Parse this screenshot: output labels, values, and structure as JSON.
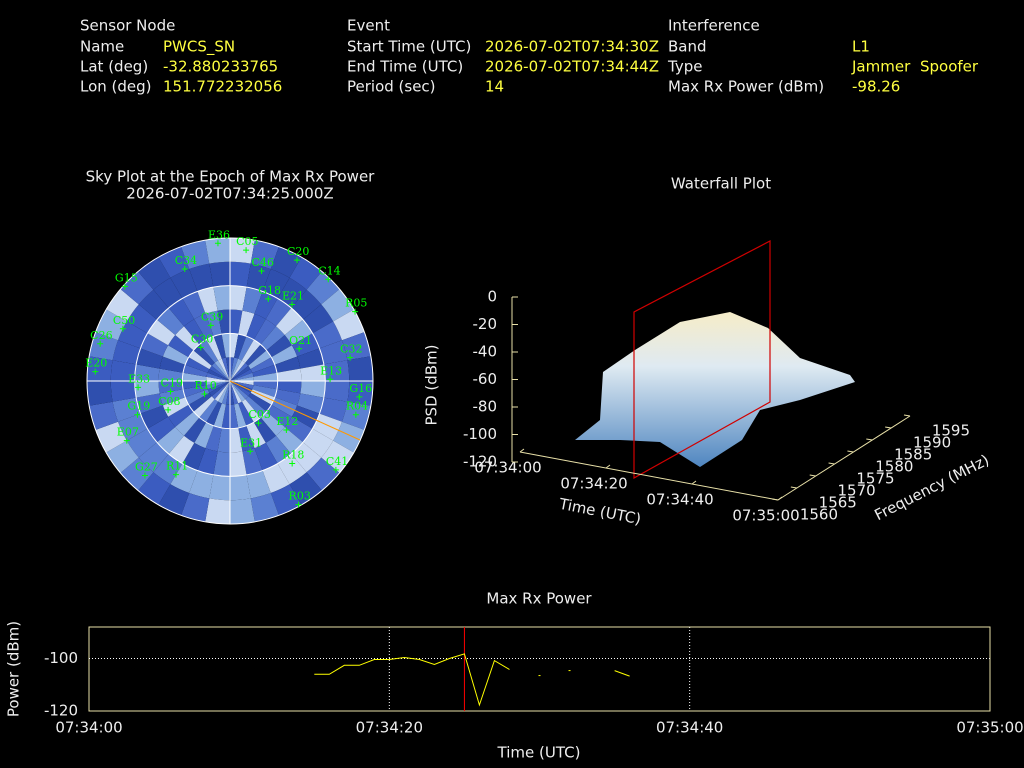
{
  "header": {
    "sensor_node": {
      "title": "Sensor Node",
      "fields": [
        {
          "label": "Name",
          "value": "PWCS_SN"
        },
        {
          "label": "Lat (deg)",
          "value": -32.880233765
        },
        {
          "label": "Lon (deg)",
          "value": 151.772232056
        }
      ]
    },
    "event": {
      "title": "Event",
      "fields": [
        {
          "label": "Start Time (UTC)",
          "value": "2026-07-02T07:34:30Z"
        },
        {
          "label": "End Time (UTC)",
          "value": "2026-07-02T07:34:44Z"
        },
        {
          "label": "Period (sec)",
          "value": 14
        }
      ]
    },
    "interference": {
      "title": "Interference",
      "band_label": "Band",
      "band": "L1",
      "type_label": "Type",
      "type": [
        "Jammer",
        "Spoofer"
      ],
      "power_label": "Max Rx Power (dBm)",
      "power": -98.26
    }
  },
  "chart_data": [
    {
      "type": "polar-scatter",
      "title": "Sky Plot at the Epoch of Max Rx Power",
      "subtitle": "2026-07-02T07:34:25.000Z",
      "color": "#00ff00",
      "rlim": [
        90,
        0
      ],
      "rticks": [
        0,
        30,
        60
      ],
      "satellites": [
        {
          "name": "E36",
          "azimuth": 355,
          "elevation": 3
        },
        {
          "name": "C05",
          "azimuth": 7,
          "elevation": 7
        },
        {
          "name": "C20",
          "azimuth": 29,
          "elevation": 3
        },
        {
          "name": "C34",
          "azimuth": 338,
          "elevation": 14
        },
        {
          "name": "C14",
          "azimuth": 44,
          "elevation": 1
        },
        {
          "name": "G15",
          "azimuth": 312,
          "elevation": 1
        },
        {
          "name": "C46",
          "azimuth": 16,
          "elevation": 18
        },
        {
          "name": "G18",
          "azimuth": 25,
          "elevation": 33
        },
        {
          "name": "E21",
          "azimuth": 39,
          "elevation": 28
        },
        {
          "name": "R05",
          "azimuth": 61,
          "elevation": 0
        },
        {
          "name": "C39",
          "azimuth": 341,
          "elevation": 53
        },
        {
          "name": "O21",
          "azimuth": 65,
          "elevation": 42
        },
        {
          "name": "C30",
          "azimuth": 319,
          "elevation": 62
        },
        {
          "name": "C50",
          "azimuth": 296,
          "elevation": 15
        },
        {
          "name": "C26",
          "azimuth": 286,
          "elevation": 5
        },
        {
          "name": "E20",
          "azimuth": 274,
          "elevation": 5
        },
        {
          "name": "C32",
          "azimuth": 79,
          "elevation": 13
        },
        {
          "name": "E13",
          "azimuth": 89,
          "elevation": 27
        },
        {
          "name": "G16",
          "azimuth": 97,
          "elevation": 8
        },
        {
          "name": "R04",
          "azimuth": 105,
          "elevation": 8
        },
        {
          "name": "E33",
          "azimuth": 266,
          "elevation": 32
        },
        {
          "name": "C19",
          "azimuth": 260,
          "elevation": 52
        },
        {
          "name": "R10",
          "azimuth": 243,
          "elevation": 72
        },
        {
          "name": "C08",
          "azimuth": 245,
          "elevation": 47
        },
        {
          "name": "G19",
          "azimuth": 250,
          "elevation": 28
        },
        {
          "name": "E07",
          "azimuth": 240,
          "elevation": 15
        },
        {
          "name": "E31",
          "azimuth": 164,
          "elevation": 44
        },
        {
          "name": "E12",
          "azimuth": 131,
          "elevation": 43
        },
        {
          "name": "R18",
          "azimuth": 143,
          "elevation": 25
        },
        {
          "name": "C41",
          "azimuth": 130,
          "elevation": 3
        },
        {
          "name": "R11",
          "azimuth": 210,
          "elevation": 22
        },
        {
          "name": "G27",
          "azimuth": 222,
          "elevation": 10
        },
        {
          "name": "R03",
          "azimuth": 151,
          "elevation": 1
        },
        {
          "name": "C03",
          "azimuth": 146,
          "elevation": 58
        }
      ]
    },
    {
      "type": "surface3d",
      "title": "Waterfall Plot",
      "x_label": "Time (UTC)",
      "y_label": "Frequency (MHz)",
      "z_label": "PSD (dBm)",
      "xlim": [
        "07:34:00",
        "07:35:00"
      ],
      "xticks": [
        "07:34:00",
        "07:34:20",
        "07:34:40",
        "07:35:00"
      ],
      "ylim": [
        1560,
        1595
      ],
      "yticks": [
        1560,
        1565,
        1570,
        1575,
        1580,
        1585,
        1590,
        1595
      ],
      "zlim": [
        -120,
        0
      ],
      "zticks": [
        -120,
        -100,
        -80,
        -60,
        -40,
        -20,
        0
      ]
    },
    {
      "type": "line",
      "title": "Max Rx Power",
      "x_label": "Time (UTC)",
      "y_label": "Power (dBm)",
      "color": "#ffff00",
      "x": [
        "07:34:15",
        "07:34:16",
        "07:34:17",
        "07:34:18",
        "07:34:19",
        "07:34:20",
        "07:34:21",
        "07:34:22",
        "07:34:23",
        "07:34:24",
        "07:34:25",
        "07:34:26",
        "07:34:27",
        "07:34:28",
        "07:34:29",
        "07:34:30",
        "07:34:31",
        "07:34:32",
        "07:34:33",
        "07:34:34",
        "07:34:35",
        "07:34:36"
      ],
      "values": [
        -106,
        -106,
        -102.6,
        -102.6,
        -100.4,
        -100.4,
        -99.6,
        -100.4,
        -102.3,
        -100,
        -98.26,
        -117.7,
        -100.8,
        -104.2,
        null,
        -106.5,
        null,
        -104.6,
        null,
        null,
        -104.6,
        -106.7
      ],
      "marker_x": "07:34:25",
      "marker_color": "#ff0000",
      "xlim": [
        "07:34:00",
        "07:35:00"
      ],
      "xticks": [
        "07:34:00",
        "07:34:20",
        "07:34:40",
        "07:35:00"
      ],
      "ylim": [
        -120,
        -88
      ],
      "yticks": [
        -120,
        -100
      ],
      "grid": true
    }
  ]
}
